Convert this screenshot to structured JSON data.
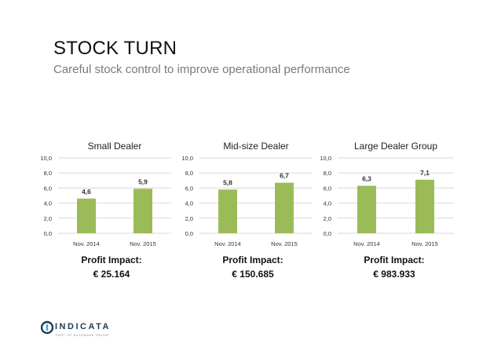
{
  "title": "STOCK TURN",
  "subtitle": "Careful stock control to improve operational performance",
  "colors": {
    "bar": "#9bbb59",
    "grid": "#d9d9d9",
    "logo": "#1a3a56"
  },
  "chart_data": [
    {
      "type": "bar",
      "title": "Small Dealer",
      "categories": [
        "Nov. 2014",
        "Nov. 2015"
      ],
      "values": [
        4.6,
        5.9
      ],
      "value_labels": [
        "4,6",
        "5,9"
      ],
      "ylim": [
        0,
        10
      ],
      "yticks": [
        "0,0",
        "2,0",
        "4,0",
        "6,0",
        "8,0",
        "10,0"
      ],
      "grid": true,
      "xlabel": "",
      "ylabel": ""
    },
    {
      "type": "bar",
      "title": "Mid-size Dealer",
      "categories": [
        "Nov. 2014",
        "Nov. 2015"
      ],
      "values": [
        5.8,
        6.7
      ],
      "value_labels": [
        "5,8",
        "6,7"
      ],
      "ylim": [
        0,
        10
      ],
      "yticks": [
        "0,0",
        "2,0",
        "4,0",
        "6,0",
        "8,0",
        "10,0"
      ],
      "grid": true,
      "xlabel": "",
      "ylabel": ""
    },
    {
      "type": "bar",
      "title": "Large Dealer Group",
      "categories": [
        "Nov. 2014",
        "Nov. 2015"
      ],
      "values": [
        6.3,
        7.1
      ],
      "value_labels": [
        "6,3",
        "7,1"
      ],
      "ylim": [
        0,
        10
      ],
      "yticks": [
        "0,0",
        "2,0",
        "4,0",
        "6,0",
        "8,0",
        "10,0"
      ],
      "grid": true,
      "xlabel": "",
      "ylabel": ""
    }
  ],
  "impacts": [
    {
      "label": "Profit Impact:",
      "value": "€ 25.164"
    },
    {
      "label": "Profit Impact:",
      "value": "€ 150.685"
    },
    {
      "label": "Profit Impact:",
      "value": "€ 983.933"
    }
  ],
  "logo": {
    "name": "INDICATA",
    "tagline": "PART OF AUTOBASE GROUP",
    "icon": "indicata-logo-icon"
  }
}
